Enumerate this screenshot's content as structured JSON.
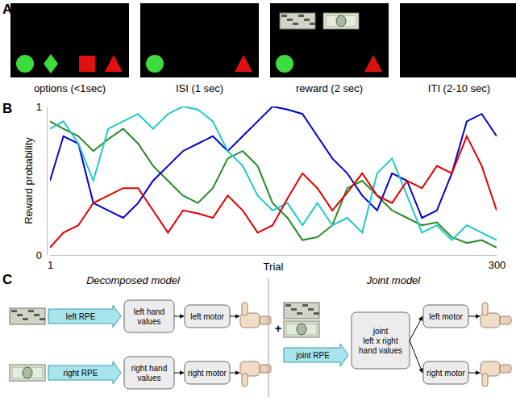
{
  "panel_labels": [
    "A",
    "B",
    "C"
  ],
  "panel_a": {
    "screens": [
      {
        "label": "options (<1sec)"
      },
      {
        "label": "ISI (1 sec)"
      },
      {
        "label": "reward (2 sec)"
      },
      {
        "label": "ITI (2-10 sec)"
      }
    ]
  },
  "chart_data": {
    "type": "line",
    "x_label": "Trial",
    "y_label": "Reward probability",
    "x": [
      1,
      10,
      20,
      30,
      40,
      50,
      60,
      70,
      80,
      90,
      100,
      110,
      120,
      130,
      140,
      150,
      160,
      170,
      180,
      190,
      200,
      210,
      220,
      230,
      240,
      250,
      260,
      270,
      280,
      290,
      300
    ],
    "series": [
      {
        "color": "#228b22",
        "values": [
          0.9,
          0.85,
          0.8,
          0.7,
          0.78,
          0.85,
          0.75,
          0.6,
          0.5,
          0.4,
          0.35,
          0.45,
          0.65,
          0.7,
          0.6,
          0.35,
          0.25,
          0.1,
          0.12,
          0.2,
          0.45,
          0.5,
          0.4,
          0.3,
          0.25,
          0.2,
          0.22,
          0.12,
          0.08,
          0.1,
          0.05
        ]
      },
      {
        "color": "#0000d0",
        "values": [
          0.5,
          0.8,
          0.75,
          0.35,
          0.3,
          0.25,
          0.35,
          0.5,
          0.6,
          0.7,
          0.75,
          0.8,
          0.7,
          0.8,
          0.9,
          1.0,
          0.98,
          0.95,
          0.8,
          0.65,
          0.55,
          0.4,
          0.3,
          0.55,
          0.5,
          0.25,
          0.3,
          0.55,
          0.9,
          0.95,
          0.8
        ]
      },
      {
        "color": "#20c8c8",
        "values": [
          0.85,
          0.9,
          0.75,
          0.5,
          0.85,
          0.9,
          0.95,
          0.85,
          0.95,
          1.0,
          0.98,
          0.9,
          0.7,
          0.6,
          0.4,
          0.3,
          0.35,
          0.2,
          0.35,
          0.2,
          0.25,
          0.15,
          0.55,
          0.65,
          0.4,
          0.15,
          0.2,
          0.1,
          0.2,
          0.15,
          0.1
        ]
      },
      {
        "color": "#e00000",
        "values": [
          0.05,
          0.15,
          0.2,
          0.35,
          0.4,
          0.45,
          0.45,
          0.3,
          0.15,
          0.3,
          0.28,
          0.25,
          0.4,
          0.3,
          0.15,
          0.2,
          0.38,
          0.55,
          0.45,
          0.3,
          0.42,
          0.55,
          0.4,
          0.35,
          0.5,
          0.45,
          0.6,
          0.55,
          0.8,
          0.6,
          0.3
        ]
      }
    ],
    "xlim": [
      1,
      300
    ],
    "ylim": [
      0,
      1
    ],
    "xticks": [
      1,
      300
    ],
    "yticks": [
      0,
      1
    ],
    "grid": false
  },
  "panel_c": {
    "decomposed": {
      "title": "Decomposed model",
      "rows": [
        {
          "rpe": "left RPE",
          "values": [
            "left hand",
            "values"
          ],
          "motor": "left motor"
        },
        {
          "rpe": "right RPE",
          "values": [
            "right hand",
            "values"
          ],
          "motor": "right motor"
        }
      ]
    },
    "joint": {
      "title": "Joint model",
      "plus": "+",
      "rpe": "joint RPE",
      "values": [
        "joint",
        "left x right",
        "hand values"
      ],
      "motors": [
        "left motor",
        "right motor"
      ]
    }
  }
}
